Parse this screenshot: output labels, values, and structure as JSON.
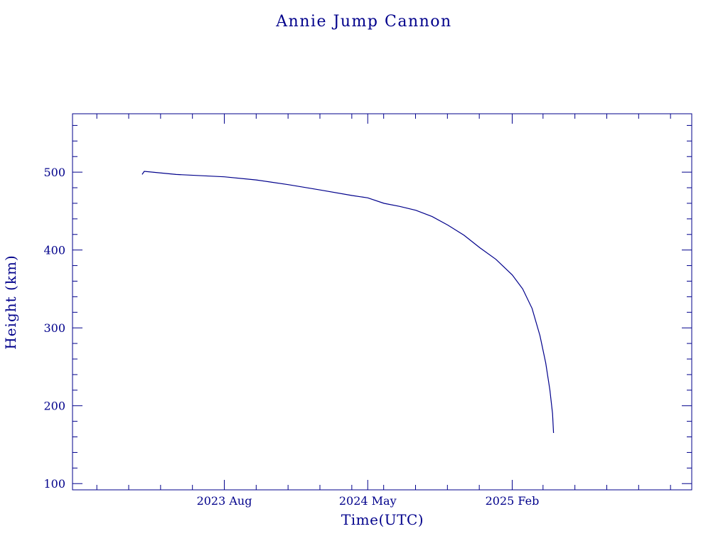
{
  "chart_data": {
    "type": "line",
    "title": "Annie Jump Cannon",
    "xlabel": "Time(UTC)",
    "ylabel": "Height (km)",
    "x_ticks": [
      {
        "date": "2023-08-01",
        "label": "2023 Aug"
      },
      {
        "date": "2024-05-01",
        "label": "2024 May"
      },
      {
        "date": "2025-02-01",
        "label": "2025 Feb"
      }
    ],
    "xlim": [
      "2022-10-15",
      "2026-01-10"
    ],
    "ylim": [
      92,
      575
    ],
    "y_ticks": [
      100,
      200,
      300,
      400,
      500
    ],
    "y_minor_step": 20,
    "grid": false,
    "color": "#00008b",
    "series": [
      {
        "points": [
          {
            "x": "2023-02-25",
            "y": 497
          },
          {
            "x": "2023-03-01",
            "y": 501
          },
          {
            "x": "2023-05-01",
            "y": 497
          },
          {
            "x": "2023-08-01",
            "y": 494
          },
          {
            "x": "2023-10-01",
            "y": 490
          },
          {
            "x": "2023-12-01",
            "y": 484
          },
          {
            "x": "2024-02-01",
            "y": 477
          },
          {
            "x": "2024-04-01",
            "y": 470
          },
          {
            "x": "2024-05-01",
            "y": 467
          },
          {
            "x": "2024-06-01",
            "y": 460
          },
          {
            "x": "2024-07-01",
            "y": 456
          },
          {
            "x": "2024-08-01",
            "y": 451
          },
          {
            "x": "2024-09-01",
            "y": 443
          },
          {
            "x": "2024-10-01",
            "y": 432
          },
          {
            "x": "2024-11-01",
            "y": 419
          },
          {
            "x": "2024-12-01",
            "y": 403
          },
          {
            "x": "2025-01-01",
            "y": 388
          },
          {
            "x": "2025-02-01",
            "y": 368
          },
          {
            "x": "2025-02-21",
            "y": 350
          },
          {
            "x": "2025-03-11",
            "y": 325
          },
          {
            "x": "2025-03-26",
            "y": 290
          },
          {
            "x": "2025-04-06",
            "y": 255
          },
          {
            "x": "2025-04-14",
            "y": 220
          },
          {
            "x": "2025-04-19",
            "y": 190
          },
          {
            "x": "2025-04-21",
            "y": 165
          }
        ]
      }
    ]
  }
}
